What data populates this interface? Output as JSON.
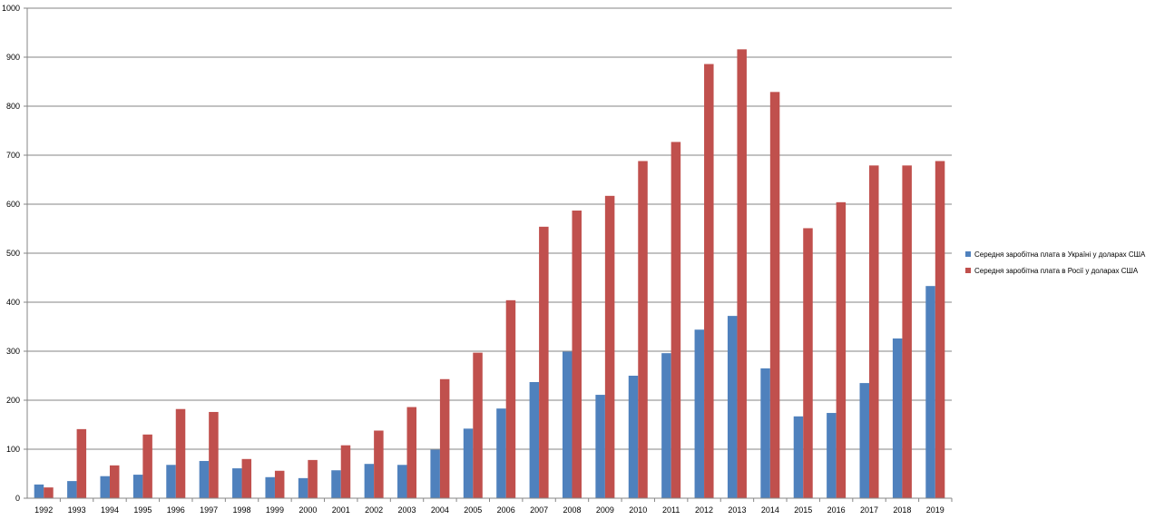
{
  "chart_data": {
    "type": "bar",
    "title": "",
    "xlabel": "",
    "ylabel": "",
    "ylim": [
      0,
      1000
    ],
    "yticks": [
      "0",
      "100",
      "200",
      "300",
      "400",
      "500",
      "600",
      "700",
      "800",
      "900",
      "1000"
    ],
    "grid": true,
    "legend_position": "right",
    "categories": [
      "1992",
      "1993",
      "1994",
      "1995",
      "1996",
      "1997",
      "1998",
      "1999",
      "2000",
      "2001",
      "2002",
      "2003",
      "2004",
      "2005",
      "2006",
      "2007",
      "2008",
      "2009",
      "2010",
      "2011",
      "2012",
      "2013",
      "2014",
      "2015",
      "2016",
      "2017",
      "2018",
      "2019"
    ],
    "series": [
      {
        "name": "Середня заробітна плата в Україні у доларах США",
        "color": "#4f81bd",
        "values": [
          28,
          35,
          45,
          48,
          68,
          76,
          61,
          43,
          41,
          57,
          70,
          68,
          99,
          142,
          183,
          237,
          299,
          211,
          250,
          296,
          344,
          372,
          265,
          167,
          174,
          235,
          326,
          433
        ]
      },
      {
        "name": "Середня заробітна плата в Росії у доларах США",
        "color": "#c0504d",
        "values": [
          22,
          141,
          67,
          130,
          182,
          176,
          80,
          56,
          78,
          108,
          138,
          186,
          243,
          297,
          404,
          554,
          587,
          617,
          688,
          727,
          886,
          916,
          829,
          551,
          604,
          679,
          679,
          688
        ]
      }
    ]
  }
}
